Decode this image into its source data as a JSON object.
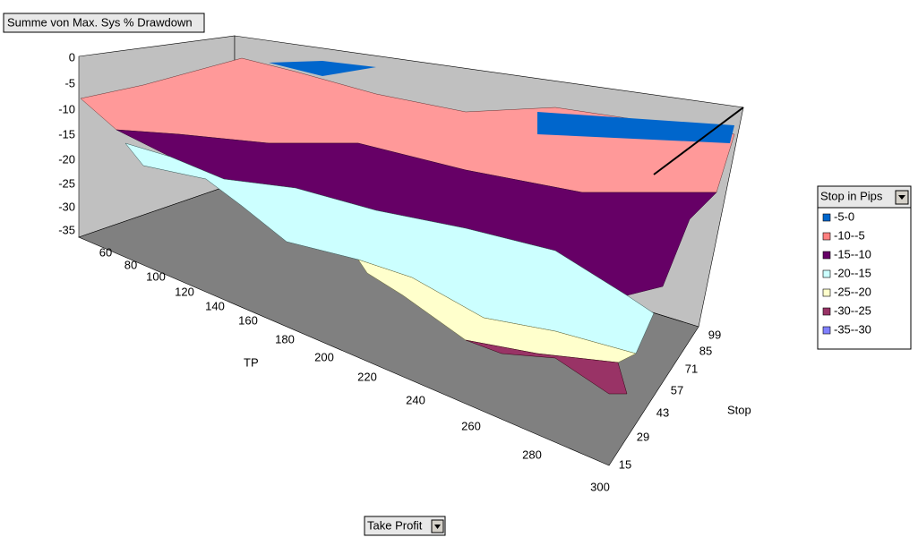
{
  "data_field_button": "Summe von Max. Sys % Drawdown",
  "z_axis": {
    "ticks": [
      "0",
      "-5",
      "-10",
      "-15",
      "-20",
      "-25",
      "-30",
      "-35"
    ]
  },
  "tp_axis": {
    "label": "TP",
    "ticks": [
      "60",
      "80",
      "100",
      "120",
      "140",
      "160",
      "180",
      "200",
      "220",
      "240",
      "260",
      "280",
      "300"
    ]
  },
  "stop_axis": {
    "label": "Stop",
    "ticks": [
      "99",
      "85",
      "71",
      "57",
      "43",
      "29",
      "15"
    ]
  },
  "legend": {
    "title": "Stop in Pips",
    "entries": [
      {
        "label": "-5-0",
        "color": "#0066cc"
      },
      {
        "label": "-10--5",
        "color": "#ff8080"
      },
      {
        "label": "-15--10",
        "color": "#660066"
      },
      {
        "label": "-20--15",
        "color": "#ccffff"
      },
      {
        "label": "-25--20",
        "color": "#ffffcc"
      },
      {
        "label": "-30--25",
        "color": "#993366"
      },
      {
        "label": "-35--30",
        "color": "#8080ff"
      }
    ]
  },
  "category_field_button": "Take Profit"
}
